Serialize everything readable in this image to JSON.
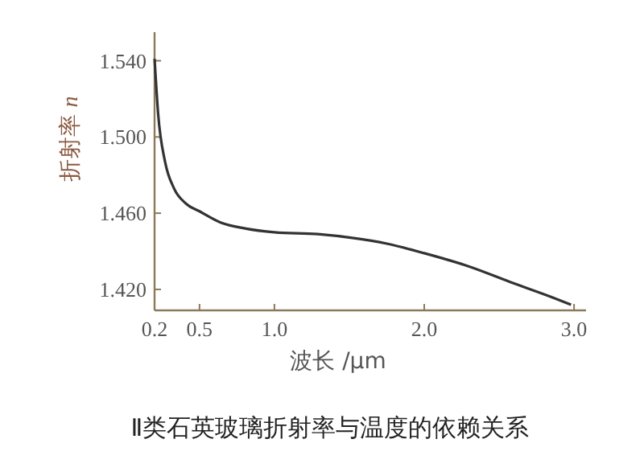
{
  "chart_data": {
    "type": "line",
    "title": "Ⅱ类石英玻璃折射率与温度的依赖关系",
    "xlabel": "波长 /μm",
    "ylabel": "折射率 n",
    "x": [
      0.2,
      0.224,
      0.27,
      0.33,
      0.41,
      0.5,
      0.644,
      0.804,
      1.0,
      1.29,
      1.52,
      1.75,
      2.0,
      2.3,
      2.57,
      2.85,
      2.98
    ],
    "series": [
      {
        "color": "#333333",
        "values": [
          1.541,
          1.512,
          1.487,
          1.473,
          1.465,
          1.461,
          1.455,
          1.452,
          1.45,
          1.449,
          1.447,
          1.444,
          1.439,
          1.432,
          1.424,
          1.416,
          1.412
        ]
      }
    ],
    "xlim": [
      0.2,
      3.08
    ],
    "xticks": [
      0.2,
      0.5,
      {
        "value": 1,
        "label": "1.0"
      },
      {
        "value": 2,
        "label": "2.0"
      },
      {
        "value": 3,
        "label": "3.0"
      }
    ],
    "ylim": [
      1.409,
      1.555
    ],
    "yticks": [
      {
        "value": 1.42,
        "label": "1.420"
      },
      {
        "value": 1.46,
        "label": "1.460"
      },
      {
        "value": 1.5,
        "label": "1.500"
      },
      {
        "value": 1.54,
        "label": "1.540"
      }
    ],
    "grid": false,
    "marker": "none",
    "line_style": "solid"
  }
}
